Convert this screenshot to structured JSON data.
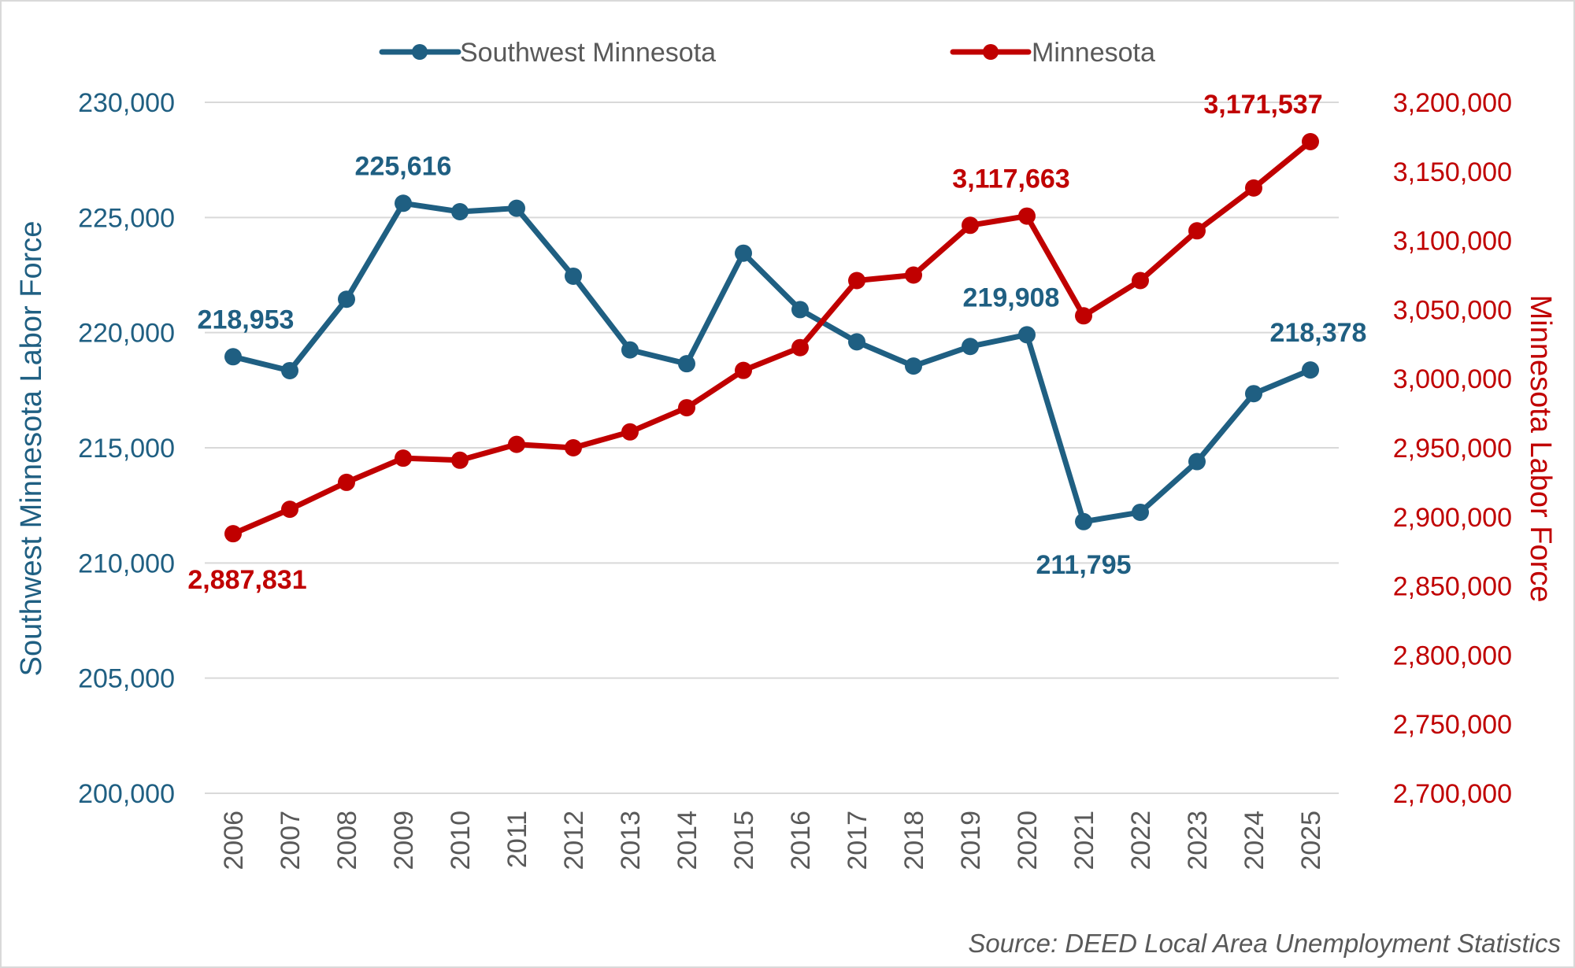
{
  "chart_data": {
    "type": "line",
    "x": [
      "2006",
      "2007",
      "2008",
      "2009",
      "2010",
      "2011",
      "2012",
      "2013",
      "2014",
      "2015",
      "2016",
      "2017",
      "2018",
      "2019",
      "2020",
      "2021",
      "2022",
      "2023",
      "2024",
      "2025"
    ],
    "series": [
      {
        "name": "Southwest Minnesota",
        "axis": "left",
        "color": "#1f5f82",
        "values": [
          218953,
          218350,
          221450,
          225616,
          225250,
          225400,
          222450,
          219250,
          218650,
          223450,
          221000,
          219600,
          218550,
          219400,
          219908,
          211795,
          212200,
          214400,
          217350,
          218378
        ],
        "labels": [
          {
            "index": 0,
            "text": "218,953",
            "position": "above-left"
          },
          {
            "index": 3,
            "text": "225,616",
            "position": "above"
          },
          {
            "index": 14,
            "text": "219,908",
            "position": "above-left"
          },
          {
            "index": 15,
            "text": "211,795",
            "position": "below"
          },
          {
            "index": 19,
            "text": "218,378",
            "position": "above"
          }
        ]
      },
      {
        "name": "Minnesota",
        "axis": "right",
        "color": "#c00000",
        "values": [
          2887831,
          2905500,
          2925000,
          2942500,
          2941000,
          2952500,
          2950000,
          2961500,
          2979000,
          3006000,
          3022500,
          3071000,
          3075000,
          3111000,
          3117663,
          3045500,
          3071000,
          3107000,
          3138000,
          3171537
        ],
        "labels": [
          {
            "index": 0,
            "text": "2,887,831",
            "position": "below-left"
          },
          {
            "index": 14,
            "text": "3,117,663",
            "position": "above-left"
          },
          {
            "index": 19,
            "text": "3,171,537",
            "position": "above-left"
          }
        ]
      }
    ],
    "y_left": {
      "label": "Southwest Minnesota Labor Force",
      "min": 200000,
      "max": 230000,
      "step": 5000,
      "ticks": [
        "200,000",
        "205,000",
        "210,000",
        "215,000",
        "220,000",
        "225,000",
        "230,000"
      ]
    },
    "y_right": {
      "label": "Minnesota Labor Force",
      "min": 2700000,
      "max": 3200000,
      "step": 50000,
      "ticks": [
        "2,700,000",
        "2,750,000",
        "2,800,000",
        "2,850,000",
        "2,900,000",
        "2,950,000",
        "3,000,000",
        "3,050,000",
        "3,100,000",
        "3,150,000",
        "3,200,000"
      ]
    },
    "grid": true,
    "legend": "top-center",
    "source": "Source: DEED Local Area Unemployment Statistics"
  }
}
